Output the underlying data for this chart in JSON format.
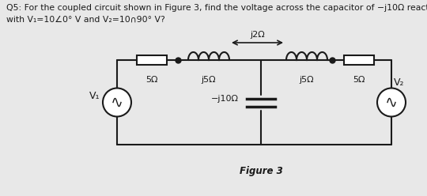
{
  "title_line1": "Q5: For the coupled circuit shown in Figure 3, find the voltage across the capacitor of −j10Ω reactance",
  "title_line2": "with V₁=10∠0° V and V₂=10∩90° V?",
  "figure_label": "Figure 3",
  "bg_color": "#e8e8e8",
  "text_color": "#000000",
  "circuit_color": "#1a1a1a",
  "labels": {
    "R1": "5Ω",
    "L1": "j5Ω",
    "M": "j2Ω",
    "L2": "j5Ω",
    "R2": "5Ω",
    "C": "−j10Ω",
    "V1": "V₁",
    "V2": "V₂"
  },
  "figsize": [
    5.4,
    2.48
  ],
  "dpi": 100
}
